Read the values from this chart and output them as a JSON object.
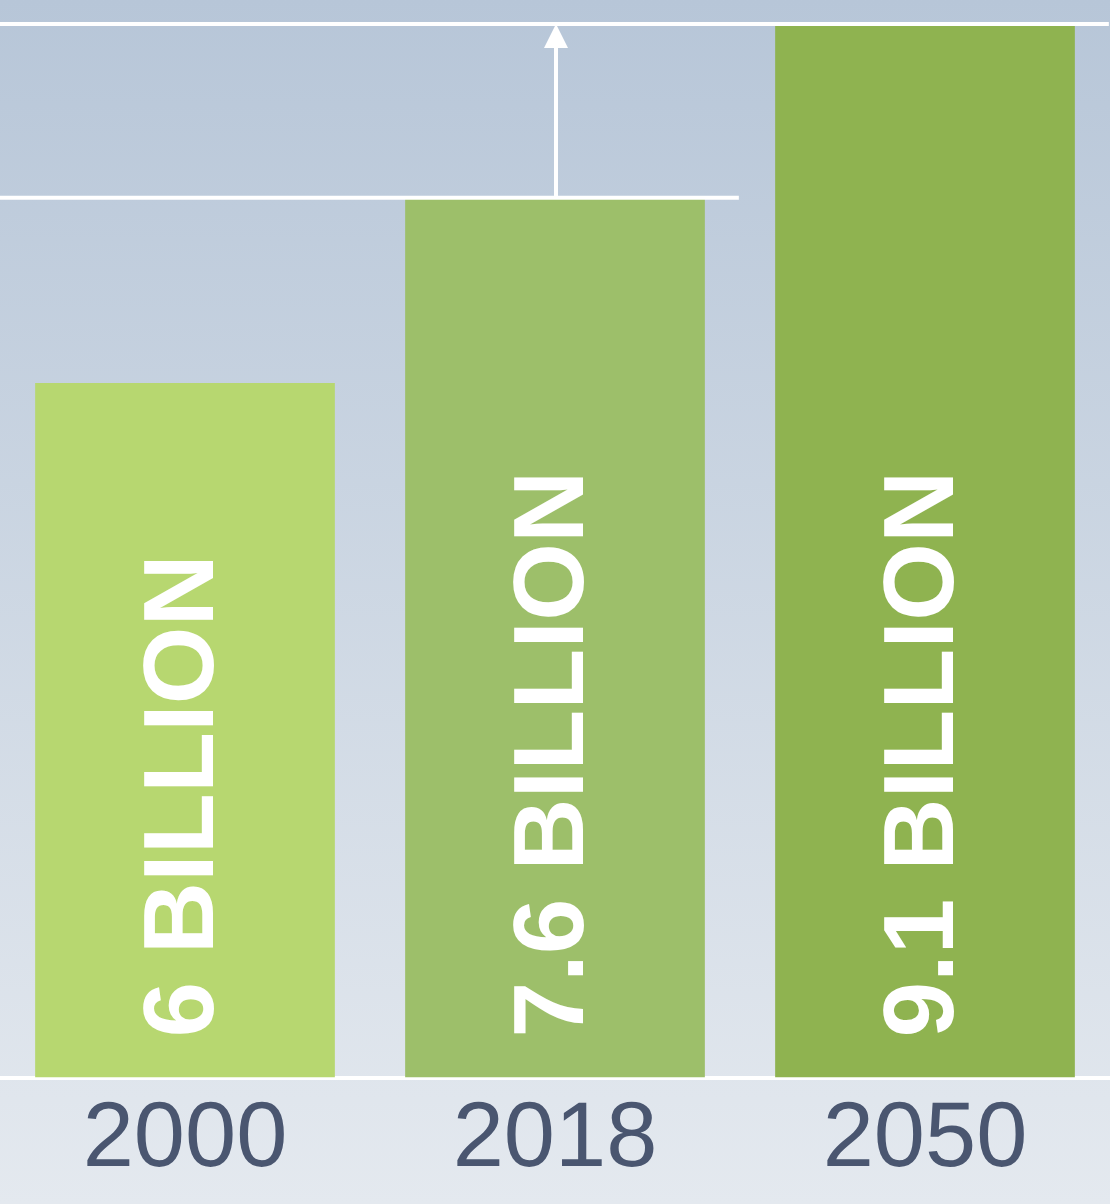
{
  "chart_data": {
    "type": "bar",
    "categories": [
      "2000",
      "2018",
      "2050"
    ],
    "values": [
      6,
      7.6,
      9.1
    ],
    "colors": [
      "#b7d770",
      "#9dbf6a",
      "#8fb350"
    ],
    "value_labels": [
      "6 BILLION",
      "7.6 BILLION",
      "9.1 BILLION"
    ],
    "ref_lines": [
      {
        "axis": "y",
        "value": 7.6,
        "color": "#ffffff"
      },
      {
        "axis": "y",
        "value": 9.1,
        "color": "#ffffff"
      }
    ],
    "grid": false,
    "legend": false
  }
}
